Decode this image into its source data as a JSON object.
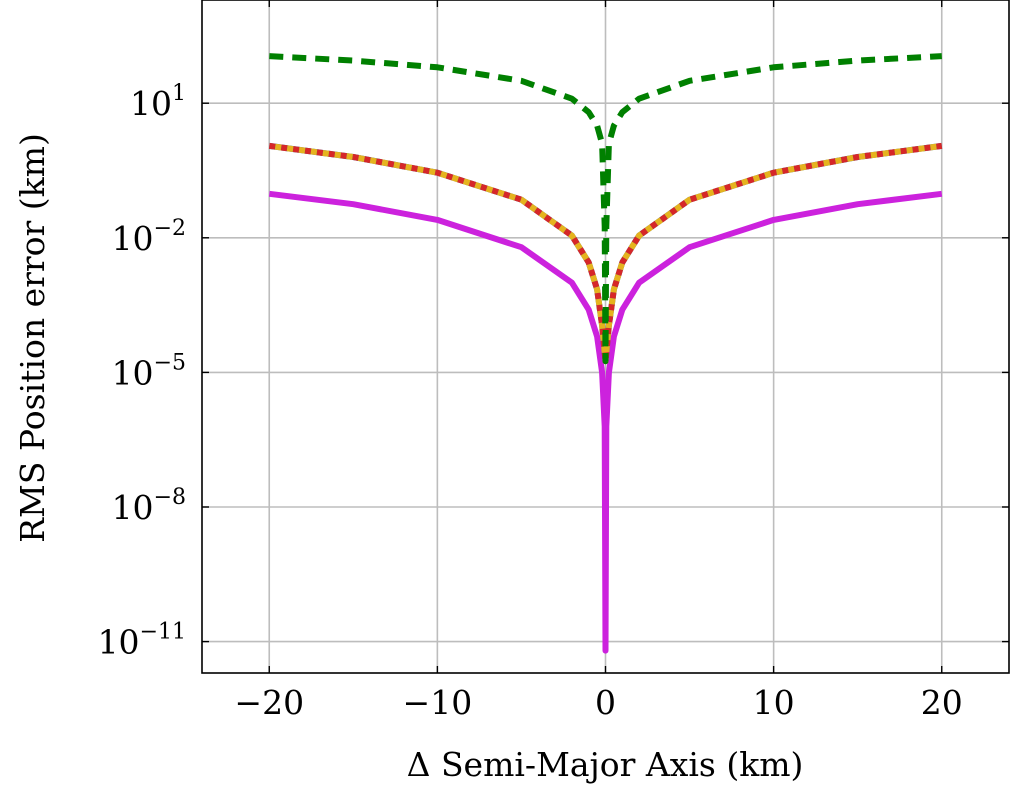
{
  "chart_data": {
    "type": "line",
    "title": "",
    "xlabel": "Δ Semi-Major Axis (km)",
    "ylabel": "RMS Position error (km)",
    "xlim": [
      -24,
      24
    ],
    "ylim_log10": [
      -11.7,
      3.3
    ],
    "yscale": "log",
    "grid": true,
    "x_ticks": [
      {
        "value": -20,
        "label": "−20"
      },
      {
        "value": -10,
        "label": "−10"
      },
      {
        "value": 0,
        "label": "0"
      },
      {
        "value": 10,
        "label": "10"
      },
      {
        "value": 20,
        "label": "20"
      }
    ],
    "y_ticks": [
      {
        "log10": 1,
        "base": "10",
        "exp": "1"
      },
      {
        "log10": -2,
        "base": "10",
        "exp": "−2"
      },
      {
        "log10": -5,
        "base": "10",
        "exp": "−5"
      },
      {
        "log10": -8,
        "base": "10",
        "exp": "−8"
      },
      {
        "log10": -11,
        "base": "10",
        "exp": "−11"
      }
    ],
    "series": [
      {
        "color": "#cc22dd",
        "style": "solid",
        "width": 6,
        "x": [
          -20,
          -15,
          -10,
          -5,
          -2,
          -1,
          -0.5,
          -0.2,
          -0.05,
          0,
          0.05,
          0.2,
          0.5,
          1,
          2,
          5,
          10,
          15,
          20
        ],
        "y": [
          0.0955,
          0.0562,
          0.0251,
          0.00617,
          0.001,
          0.00025,
          6.3e-05,
          1e-05,
          6.3e-07,
          6.3e-12,
          6.3e-07,
          1e-05,
          6.3e-05,
          0.00025,
          0.001,
          0.00617,
          0.0251,
          0.0562,
          0.0955
        ]
      },
      {
        "color": "#1f77b4",
        "style": "solid",
        "width": 6,
        "x": [
          -20,
          -15,
          -10,
          -5,
          -2,
          -1,
          -0.5,
          -0.2,
          0,
          0.2,
          0.5,
          1,
          2,
          5,
          10,
          15,
          20
        ],
        "y": [
          1.12,
          0.631,
          0.282,
          0.0708,
          0.0112,
          0.00282,
          0.000708,
          0.000112,
          1.78e-05,
          0.000112,
          0.000708,
          0.00282,
          0.0112,
          0.0708,
          0.282,
          0.631,
          1.12
        ]
      },
      {
        "color": "#d62728",
        "style": "dotted",
        "width": 6,
        "x": [
          -20,
          -15,
          -10,
          -5,
          -2,
          -1,
          -0.5,
          -0.2,
          0,
          0.2,
          0.5,
          1,
          2,
          5,
          10,
          15,
          20
        ],
        "y": [
          1.12,
          0.631,
          0.282,
          0.0708,
          0.0112,
          0.00282,
          0.000708,
          0.000112,
          1.78e-05,
          0.000112,
          0.000708,
          0.00282,
          0.0112,
          0.0708,
          0.282,
          0.631,
          1.12
        ]
      },
      {
        "color": "#e6b31e",
        "style": "dotted",
        "width": 6,
        "x": [
          -20,
          -15,
          -10,
          -5,
          -2,
          -1,
          -0.5,
          -0.2,
          0,
          0.2,
          0.5,
          1,
          2,
          5,
          10,
          15,
          20
        ],
        "y": [
          1.12,
          0.631,
          0.282,
          0.0708,
          0.0112,
          0.00282,
          0.000708,
          0.000112,
          1.78e-05,
          0.000112,
          0.000708,
          0.00282,
          0.0112,
          0.0708,
          0.282,
          0.631,
          1.12
        ]
      },
      {
        "color": "#008000",
        "style": "dashed",
        "width": 6,
        "x": [
          -20,
          -15,
          -10,
          -5,
          -2,
          -1,
          -0.5,
          -0.2,
          -0.05,
          0,
          0.05,
          0.2,
          0.5,
          1,
          2,
          5,
          10,
          15,
          20
        ],
        "y": [
          112,
          89.1,
          63.1,
          31.6,
          12.6,
          6.31,
          3.16,
          1.26,
          0.0178,
          1.78e-05,
          0.0178,
          1.26,
          3.16,
          6.31,
          12.6,
          31.6,
          63.1,
          89.1,
          112
        ]
      }
    ]
  }
}
